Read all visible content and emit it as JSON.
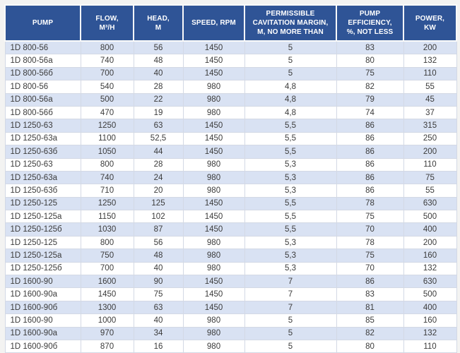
{
  "colors": {
    "header_bg": "#2f5496",
    "header_text": "#ffffff",
    "row_alt_bg": "#d9e2f3",
    "row_bg": "#ffffff",
    "cell_border": "#d3d9e5",
    "body_text": "#3b3b3b"
  },
  "table": {
    "columns": [
      {
        "key": "pump",
        "label": "PUMP"
      },
      {
        "key": "flow",
        "label": "FLOW,\nM³/H"
      },
      {
        "key": "head",
        "label": "HEAD,\nM"
      },
      {
        "key": "speed",
        "label": "SPEED, RPM"
      },
      {
        "key": "cavitation",
        "label": "PERMISSIBLE\nCAVITATION MARGIN,\nM, NO MORE THAN"
      },
      {
        "key": "efficiency",
        "label": "PUMP\nEFFICIENCY,\n%, NOT LESS"
      },
      {
        "key": "power",
        "label": "POWER,\nKW"
      }
    ],
    "rows": [
      [
        "1D 800-56",
        "800",
        "56",
        "1450",
        "5",
        "83",
        "200"
      ],
      [
        "1D 800-56a",
        "740",
        "48",
        "1450",
        "5",
        "80",
        "132"
      ],
      [
        "1D 800-56б",
        "700",
        "40",
        "1450",
        "5",
        "75",
        "110"
      ],
      [
        "1D 800-56",
        "540",
        "28",
        "980",
        "4,8",
        "82",
        "55"
      ],
      [
        "1D 800-56a",
        "500",
        "22",
        "980",
        "4,8",
        "79",
        "45"
      ],
      [
        "1D 800-56б",
        "470",
        "19",
        "980",
        "4,8",
        "74",
        "37"
      ],
      [
        "1D 1250-63",
        "1250",
        "63",
        "1450",
        "5,5",
        "86",
        "315"
      ],
      [
        "1D 1250-63a",
        "1100",
        "52,5",
        "1450",
        "5,5",
        "86",
        "250"
      ],
      [
        "1D 1250-63б",
        "1050",
        "44",
        "1450",
        "5,5",
        "86",
        "200"
      ],
      [
        "1D 1250-63",
        "800",
        "28",
        "980",
        "5,3",
        "86",
        "110"
      ],
      [
        "1D 1250-63a",
        "740",
        "24",
        "980",
        "5,3",
        "86",
        "75"
      ],
      [
        "1D 1250-63б",
        "710",
        "20",
        "980",
        "5,3",
        "86",
        "55"
      ],
      [
        "1D 1250-125",
        "1250",
        "125",
        "1450",
        "5,5",
        "78",
        "630"
      ],
      [
        "1D 1250-125a",
        "1150",
        "102",
        "1450",
        "5,5",
        "75",
        "500"
      ],
      [
        "1D 1250-125б",
        "1030",
        "87",
        "1450",
        "5,5",
        "70",
        "400"
      ],
      [
        "1D 1250-125",
        "800",
        "56",
        "980",
        "5,3",
        "78",
        "200"
      ],
      [
        "1D 1250-125a",
        "750",
        "48",
        "980",
        "5,3",
        "75",
        "160"
      ],
      [
        "1D 1250-125б",
        "700",
        "40",
        "980",
        "5,3",
        "70",
        "132"
      ],
      [
        "1D 1600-90",
        "1600",
        "90",
        "1450",
        "7",
        "86",
        "630"
      ],
      [
        "1D 1600-90a",
        "1450",
        "75",
        "1450",
        "7",
        "83",
        "500"
      ],
      [
        "1D 1600-90б",
        "1300",
        "63",
        "1450",
        "7",
        "81",
        "400"
      ],
      [
        "1D 1600-90",
        "1000",
        "40",
        "980",
        "5",
        "85",
        "160"
      ],
      [
        "1D 1600-90a",
        "970",
        "34",
        "980",
        "5",
        "82",
        "132"
      ],
      [
        "1D 1600-90б",
        "870",
        "16",
        "980",
        "5",
        "80",
        "110"
      ]
    ]
  }
}
